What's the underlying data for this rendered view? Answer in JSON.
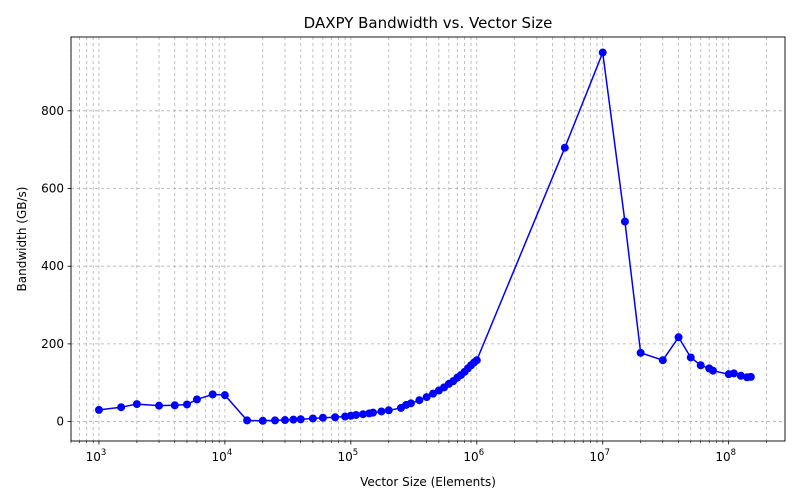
{
  "chart_data": {
    "type": "line",
    "title": "DAXPY Bandwidth vs. Vector Size",
    "xlabel": "Vector Size (Elements)",
    "ylabel": "Bandwidth (GB/s)",
    "xscale": "log",
    "xlim": [
      600,
      280000000
    ],
    "ylim": [
      -50,
      990
    ],
    "yticks": [
      0,
      200,
      400,
      600,
      800
    ],
    "xticks": [
      {
        "value": 1000,
        "base": "10",
        "exp": "3"
      },
      {
        "value": 10000,
        "base": "10",
        "exp": "4"
      },
      {
        "value": 100000,
        "base": "10",
        "exp": "5"
      },
      {
        "value": 1000000,
        "base": "10",
        "exp": "6"
      },
      {
        "value": 10000000,
        "base": "10",
        "exp": "7"
      },
      {
        "value": 100000000,
        "base": "10",
        "exp": "8"
      }
    ],
    "grid": true,
    "series_color": "#0000ff",
    "x": [
      1000,
      1500,
      2000,
      3000,
      4000,
      5000,
      6000,
      8000,
      10000,
      15000,
      20000,
      25000,
      30000,
      35000,
      40000,
      50000,
      60000,
      75000,
      90000,
      100000,
      110000,
      125000,
      140000,
      150000,
      175000,
      200000,
      250000,
      275000,
      300000,
      350000,
      400000,
      450000,
      500000,
      550000,
      600000,
      650000,
      700000,
      750000,
      800000,
      850000,
      900000,
      950000,
      1000000,
      5000000,
      10000000,
      15000000,
      20000000,
      30000000,
      40000000,
      50000000,
      60000000,
      70000000,
      75000000,
      100000000,
      110000000,
      125000000,
      140000000,
      150000000
    ],
    "y": [
      30,
      37,
      45,
      41,
      42,
      44,
      57,
      70,
      68,
      3,
      2,
      3,
      4,
      5,
      6,
      8,
      10,
      11,
      13,
      15,
      17,
      19,
      21,
      23,
      26,
      29,
      35,
      43,
      47,
      55,
      63,
      72,
      80,
      88,
      97,
      104,
      113,
      120,
      128,
      137,
      145,
      152,
      158,
      705,
      950,
      515,
      177,
      158,
      217,
      165,
      145,
      137,
      131,
      122,
      124,
      118,
      114,
      115
    ]
  }
}
